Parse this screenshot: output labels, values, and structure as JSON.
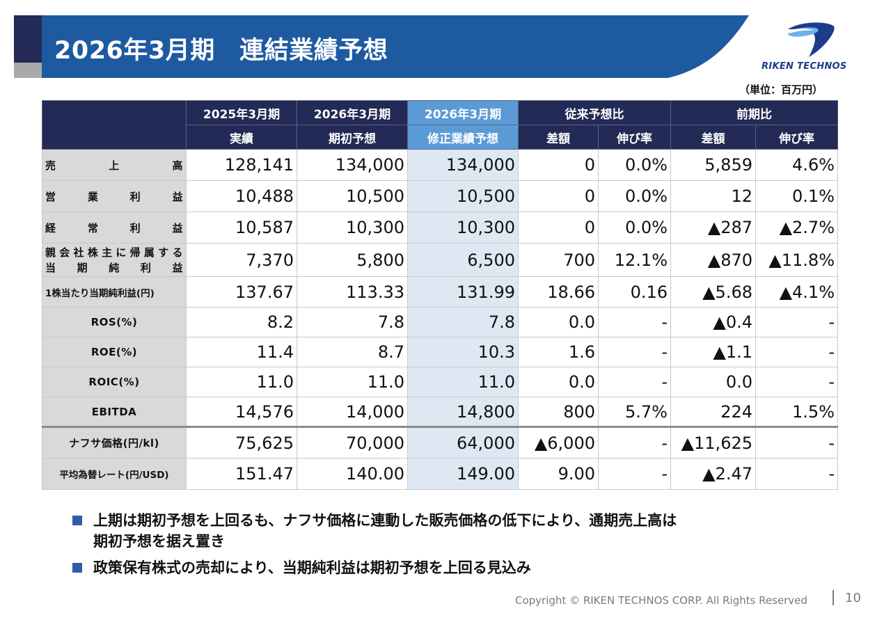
{
  "slide": {
    "title": "2026年3月期　連結業績予想",
    "unit": "（単位：百万円）",
    "logo_text": "RIKEN TECHNOS",
    "colors": {
      "navy": "#222a55",
      "band": "#1e5aa0",
      "highlight_header": "#5b9bd5",
      "highlight_cell": "#dde8f3",
      "label_bg": "#d9d9d9"
    }
  },
  "table": {
    "headers": {
      "c1_top": "2025年3月期",
      "c1_bottom": "実績",
      "c2_top": "2026年3月期",
      "c2_bottom": "期初予想",
      "c3_top": "2026年3月期",
      "c3_bottom": "修正業績予想",
      "group1": "従来予想比",
      "group2": "前期比",
      "diff": "差額",
      "rate": "伸び率"
    },
    "rows": [
      {
        "label": "売上高",
        "label_parts": [
          "売",
          "上",
          "高"
        ],
        "values": [
          "128,141",
          "134,000",
          "134,000",
          "0",
          "0.0%",
          "5,859",
          "4.6%"
        ]
      },
      {
        "label": "営業利益",
        "label_parts": [
          "営",
          "業",
          "利",
          "益"
        ],
        "values": [
          "10,488",
          "10,500",
          "10,500",
          "0",
          "0.0%",
          "12",
          "0.1%"
        ]
      },
      {
        "label": "経常利益",
        "label_parts": [
          "経",
          "常",
          "利",
          "益"
        ],
        "values": [
          "10,587",
          "10,300",
          "10,300",
          "0",
          "0.0%",
          "▲287",
          "▲2.7%"
        ]
      },
      {
        "label_line1": "親会社株主に帰属する",
        "label_line2": "当期純利益",
        "values": [
          "7,370",
          "5,800",
          "6,500",
          "700",
          "12.1%",
          "▲870",
          "▲11.8%"
        ]
      },
      {
        "label": "1株当たり当期純利益(円)",
        "values": [
          "137.67",
          "113.33",
          "131.99",
          "18.66",
          "0.16",
          "▲5.68",
          "▲4.1%"
        ]
      },
      {
        "label": "ROS(%)",
        "values": [
          "8.2",
          "7.8",
          "7.8",
          "0.0",
          "-",
          "▲0.4",
          "-"
        ]
      },
      {
        "label": "ROE(%)",
        "values": [
          "11.4",
          "8.7",
          "10.3",
          "1.6",
          "-",
          "▲1.1",
          "-"
        ]
      },
      {
        "label": "ROIC(%)",
        "values": [
          "11.0",
          "11.0",
          "11.0",
          "0.0",
          "-",
          "0.0",
          "-"
        ]
      },
      {
        "label": "EBITDA",
        "values": [
          "14,576",
          "14,000",
          "14,800",
          "800",
          "5.7%",
          "224",
          "1.5%"
        ]
      },
      {
        "label": "ナフサ価格(円/kl)",
        "values": [
          "75,625",
          "70,000",
          "64,000",
          "▲6,000",
          "-",
          "▲11,625",
          "-"
        ]
      },
      {
        "label": "平均為替レート(円/USD)",
        "values": [
          "151.47",
          "140.00",
          "149.00",
          "9.00",
          "-",
          "▲2.47",
          "-"
        ]
      }
    ]
  },
  "bullets": [
    "上期は期初予想を上回るも、ナフサ価格に連動した販売価格の低下により、通期売上高は\n期初予想を据え置き",
    "政策保有株式の売却により、当期純利益は期初予想を上回る見込み"
  ],
  "footer": {
    "copyright": "Copyright © RIKEN TECHNOS CORP. All Rights Reserved",
    "page": "10"
  }
}
